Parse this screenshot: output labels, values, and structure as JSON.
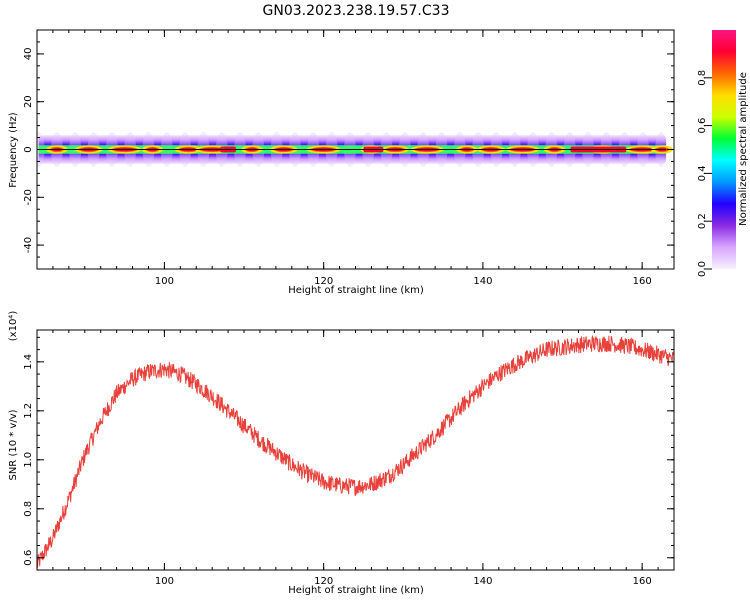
{
  "title": "GN03.2023.238.19.57.C33",
  "chart_data": [
    {
      "type": "heatmap",
      "xlabel": "Height of straight line (km)",
      "ylabel": "Frequency (Hz)",
      "xlim": [
        84,
        164
      ],
      "ylim": [
        -50,
        50
      ],
      "xticks": [
        100,
        120,
        140,
        160
      ],
      "yticks": [
        -40,
        -20,
        0,
        20,
        40
      ],
      "frequency_line": 0,
      "band_x_range": [
        84.2,
        163
      ],
      "band_half_width": 6,
      "colorbar": {
        "label": "Normalized spectral amplitude",
        "range": [
          0,
          1
        ],
        "ticks": [
          0.0,
          0.2,
          0.4,
          0.6,
          0.8
        ],
        "tick_labels": [
          "0.0",
          "0.2",
          "0.4",
          "0.6",
          "0.8"
        ],
        "colors": [
          "#f8f0ff",
          "#d9a6ff",
          "#8a2be2",
          "#2200ff",
          "#0099ff",
          "#00ffff",
          "#00ff33",
          "#ccff00",
          "#ffdd00",
          "#ff6600",
          "#ff0033",
          "#ff1480"
        ]
      },
      "peak_centers": [
        86.5,
        90.5,
        95,
        98.5,
        103,
        106,
        111,
        115,
        120,
        126,
        129,
        133,
        138,
        141,
        145,
        149,
        155,
        160,
        162.5
      ]
    },
    {
      "type": "line",
      "xlabel": "Height of straight line (km)",
      "ylabel": "SNR (10 * v/v)",
      "y_multiplier": "(x10⁴)",
      "xlim": [
        84,
        164
      ],
      "ylim": [
        0.55,
        1.53
      ],
      "xticks": [
        100,
        120,
        140,
        160
      ],
      "yticks": [
        0.6,
        0.8,
        1.0,
        1.2,
        1.4
      ],
      "ytick_labels": [
        "0.6",
        "0.8",
        "1.0",
        "1.2",
        "1.4"
      ],
      "color": "#e8403a",
      "x": [
        84,
        86,
        88,
        90,
        92,
        94,
        96,
        98,
        100,
        102,
        104,
        106,
        108,
        110,
        112,
        114,
        116,
        118,
        120,
        122,
        124,
        126,
        128,
        130,
        132,
        134,
        136,
        138,
        140,
        142,
        144,
        146,
        148,
        150,
        152,
        154,
        156,
        158,
        160,
        162,
        164
      ],
      "y": [
        0.57,
        0.68,
        0.84,
        1.02,
        1.16,
        1.27,
        1.33,
        1.36,
        1.37,
        1.35,
        1.31,
        1.26,
        1.2,
        1.14,
        1.08,
        1.03,
        0.98,
        0.94,
        0.91,
        0.895,
        0.89,
        0.9,
        0.93,
        0.98,
        1.04,
        1.1,
        1.17,
        1.24,
        1.3,
        1.35,
        1.39,
        1.42,
        1.45,
        1.46,
        1.47,
        1.475,
        1.475,
        1.465,
        1.45,
        1.43,
        1.41
      ],
      "noise_amplitude": 0.035
    }
  ]
}
